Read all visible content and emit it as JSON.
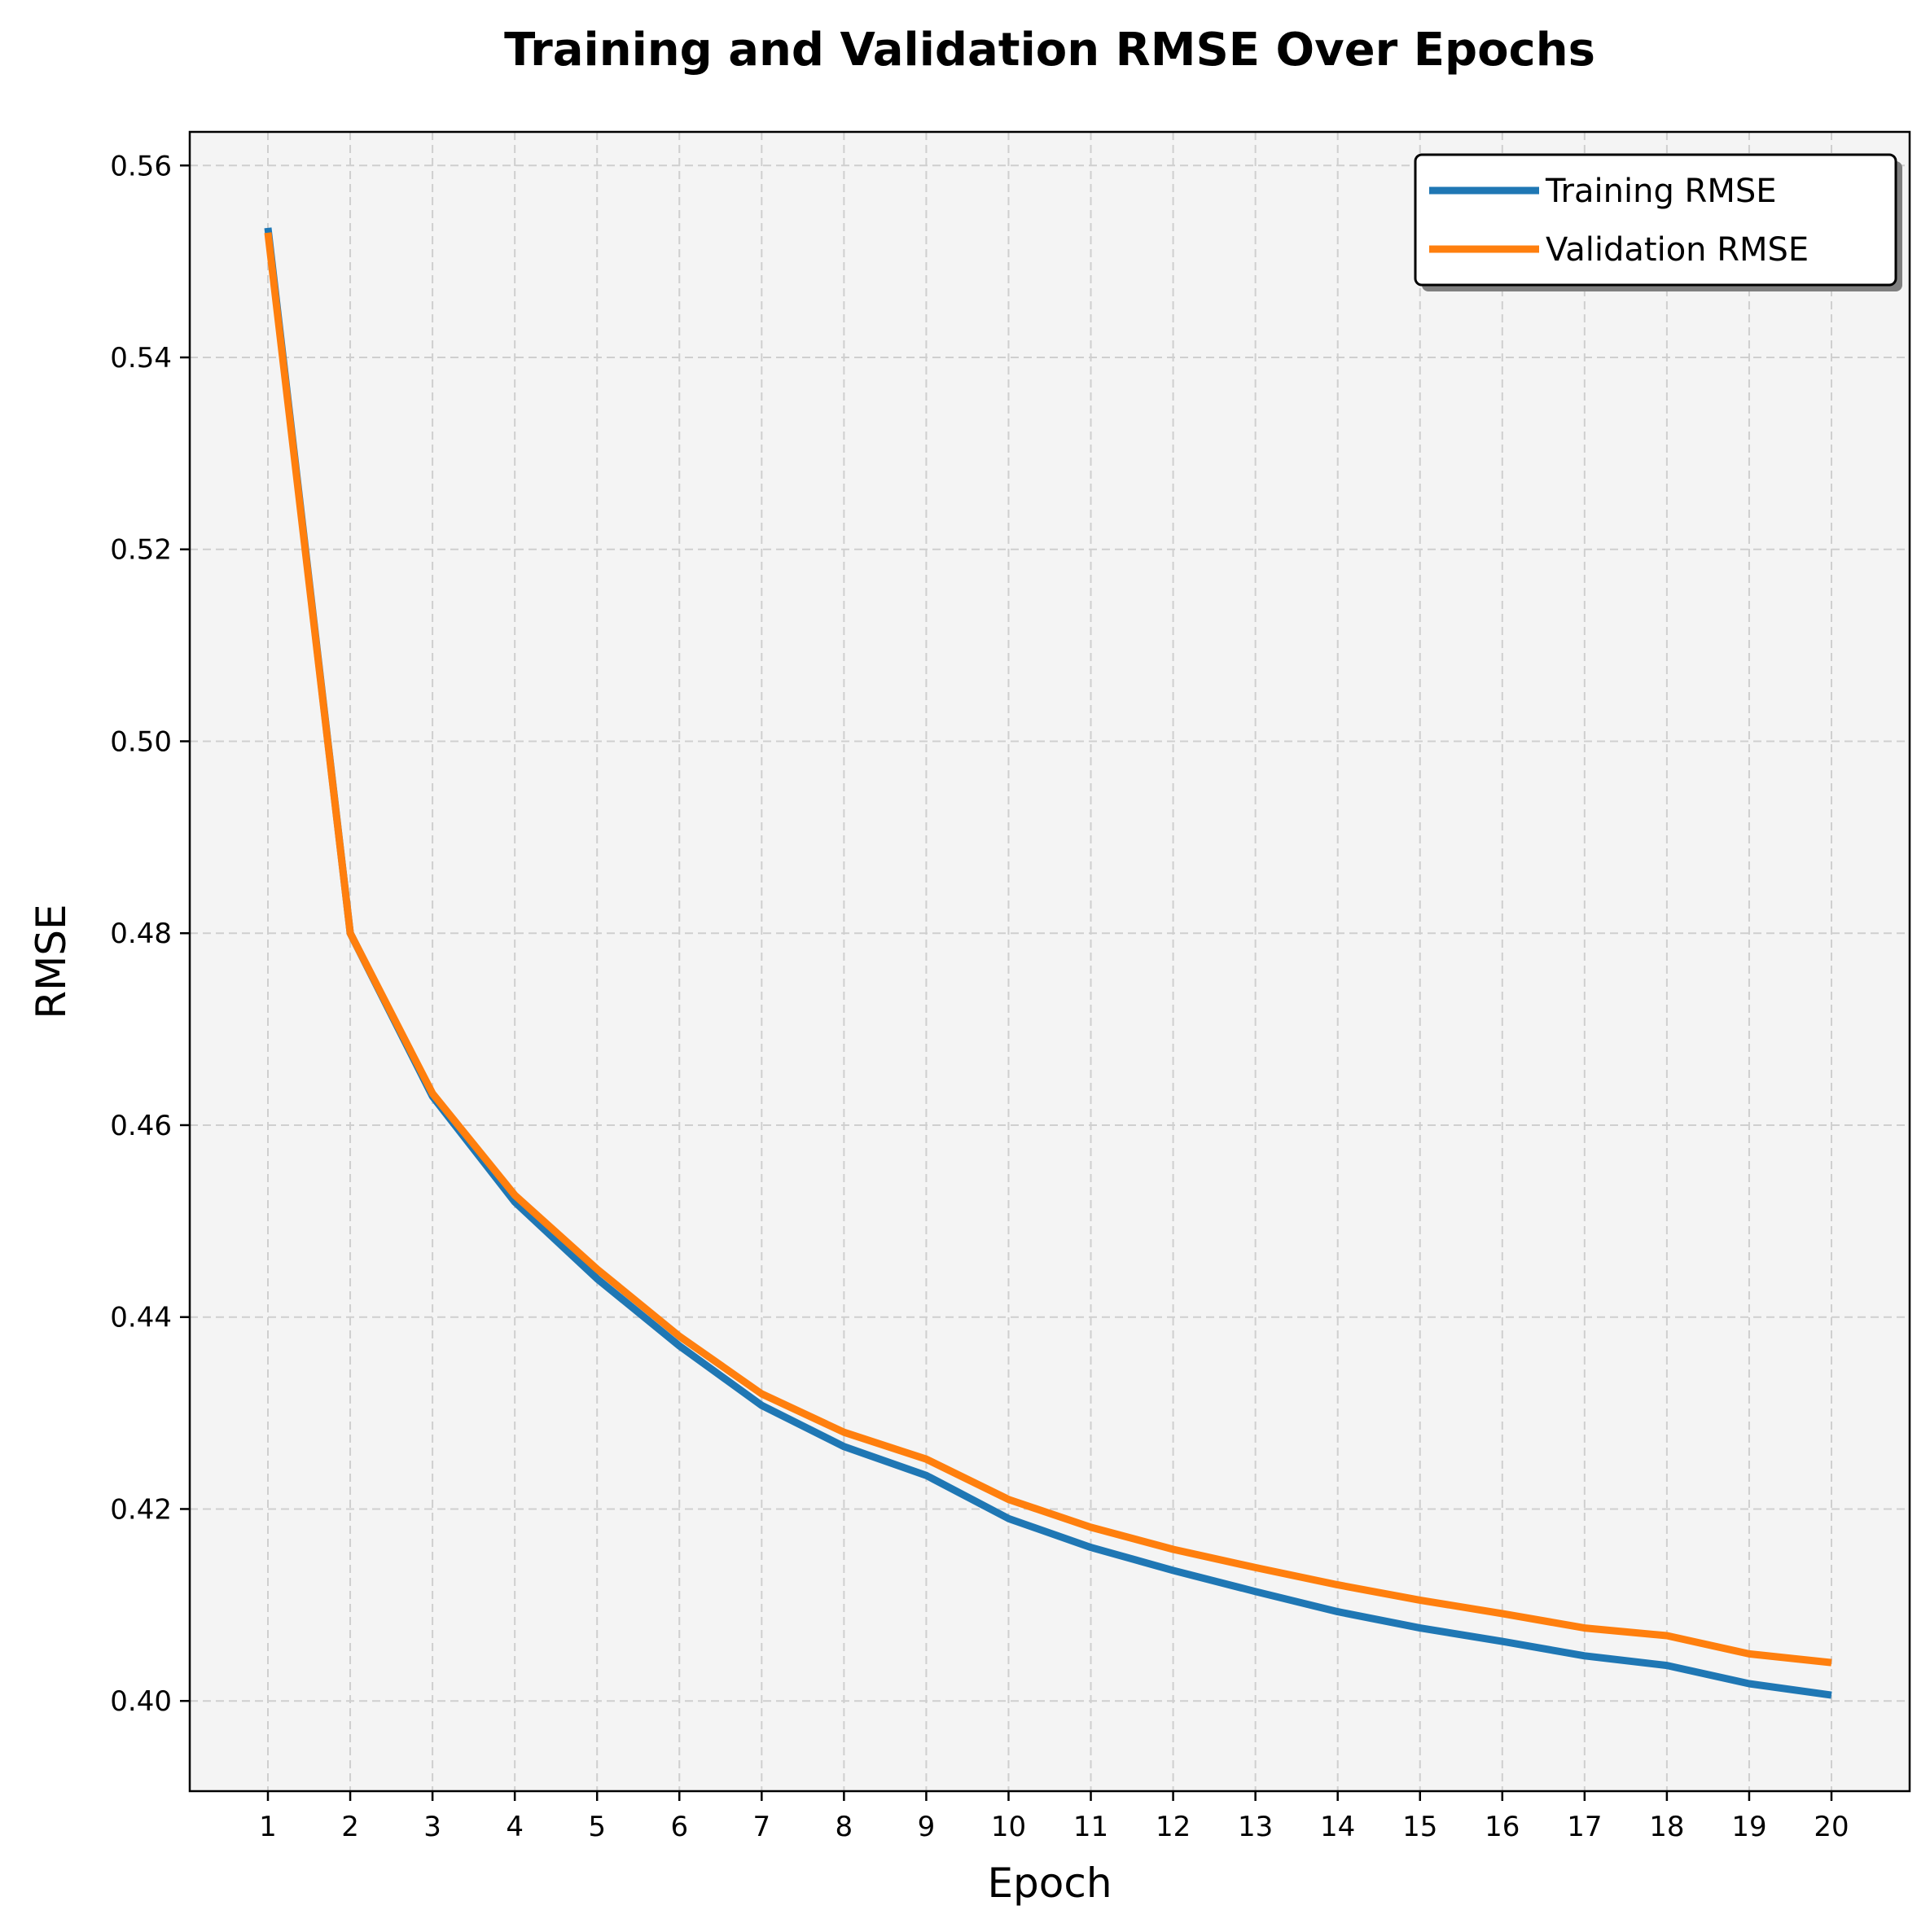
{
  "chart_data": {
    "type": "line",
    "title": "Training and Validation RMSE Over Epochs",
    "xlabel": "Epoch",
    "ylabel": "RMSE",
    "x": [
      1,
      2,
      3,
      4,
      5,
      6,
      7,
      8,
      9,
      10,
      11,
      12,
      13,
      14,
      15,
      16,
      17,
      18,
      19,
      20
    ],
    "xticks": [
      "1",
      "2",
      "3",
      "4",
      "5",
      "6",
      "7",
      "8",
      "9",
      "10",
      "11",
      "12",
      "13",
      "14",
      "15",
      "16",
      "17",
      "18",
      "19",
      "20"
    ],
    "yticks": [
      "0.40",
      "0.42",
      "0.44",
      "0.46",
      "0.48",
      "0.50",
      "0.52",
      "0.54",
      "0.56"
    ],
    "xlim": [
      0.05,
      20.95
    ],
    "ylim": [
      0.3906,
      0.5635
    ],
    "grid": true,
    "legend_position": "top-right",
    "series": [
      {
        "name": "Training RMSE",
        "color": "#1f77b4",
        "values": [
          0.5535,
          0.48,
          0.463,
          0.452,
          0.444,
          0.437,
          0.4308,
          0.4265,
          0.4235,
          0.419,
          0.416,
          0.4136,
          0.4114,
          0.4093,
          0.4076,
          0.4062,
          0.4047,
          0.4037,
          0.4018,
          0.4006
        ]
      },
      {
        "name": "Validation RMSE",
        "color": "#ff7f0e",
        "values": [
          0.553,
          0.48,
          0.4633,
          0.4527,
          0.445,
          0.438,
          0.432,
          0.428,
          0.4252,
          0.421,
          0.4181,
          0.4158,
          0.4139,
          0.4121,
          0.4105,
          0.4091,
          0.4076,
          0.4068,
          0.4049,
          0.404
        ]
      }
    ]
  }
}
